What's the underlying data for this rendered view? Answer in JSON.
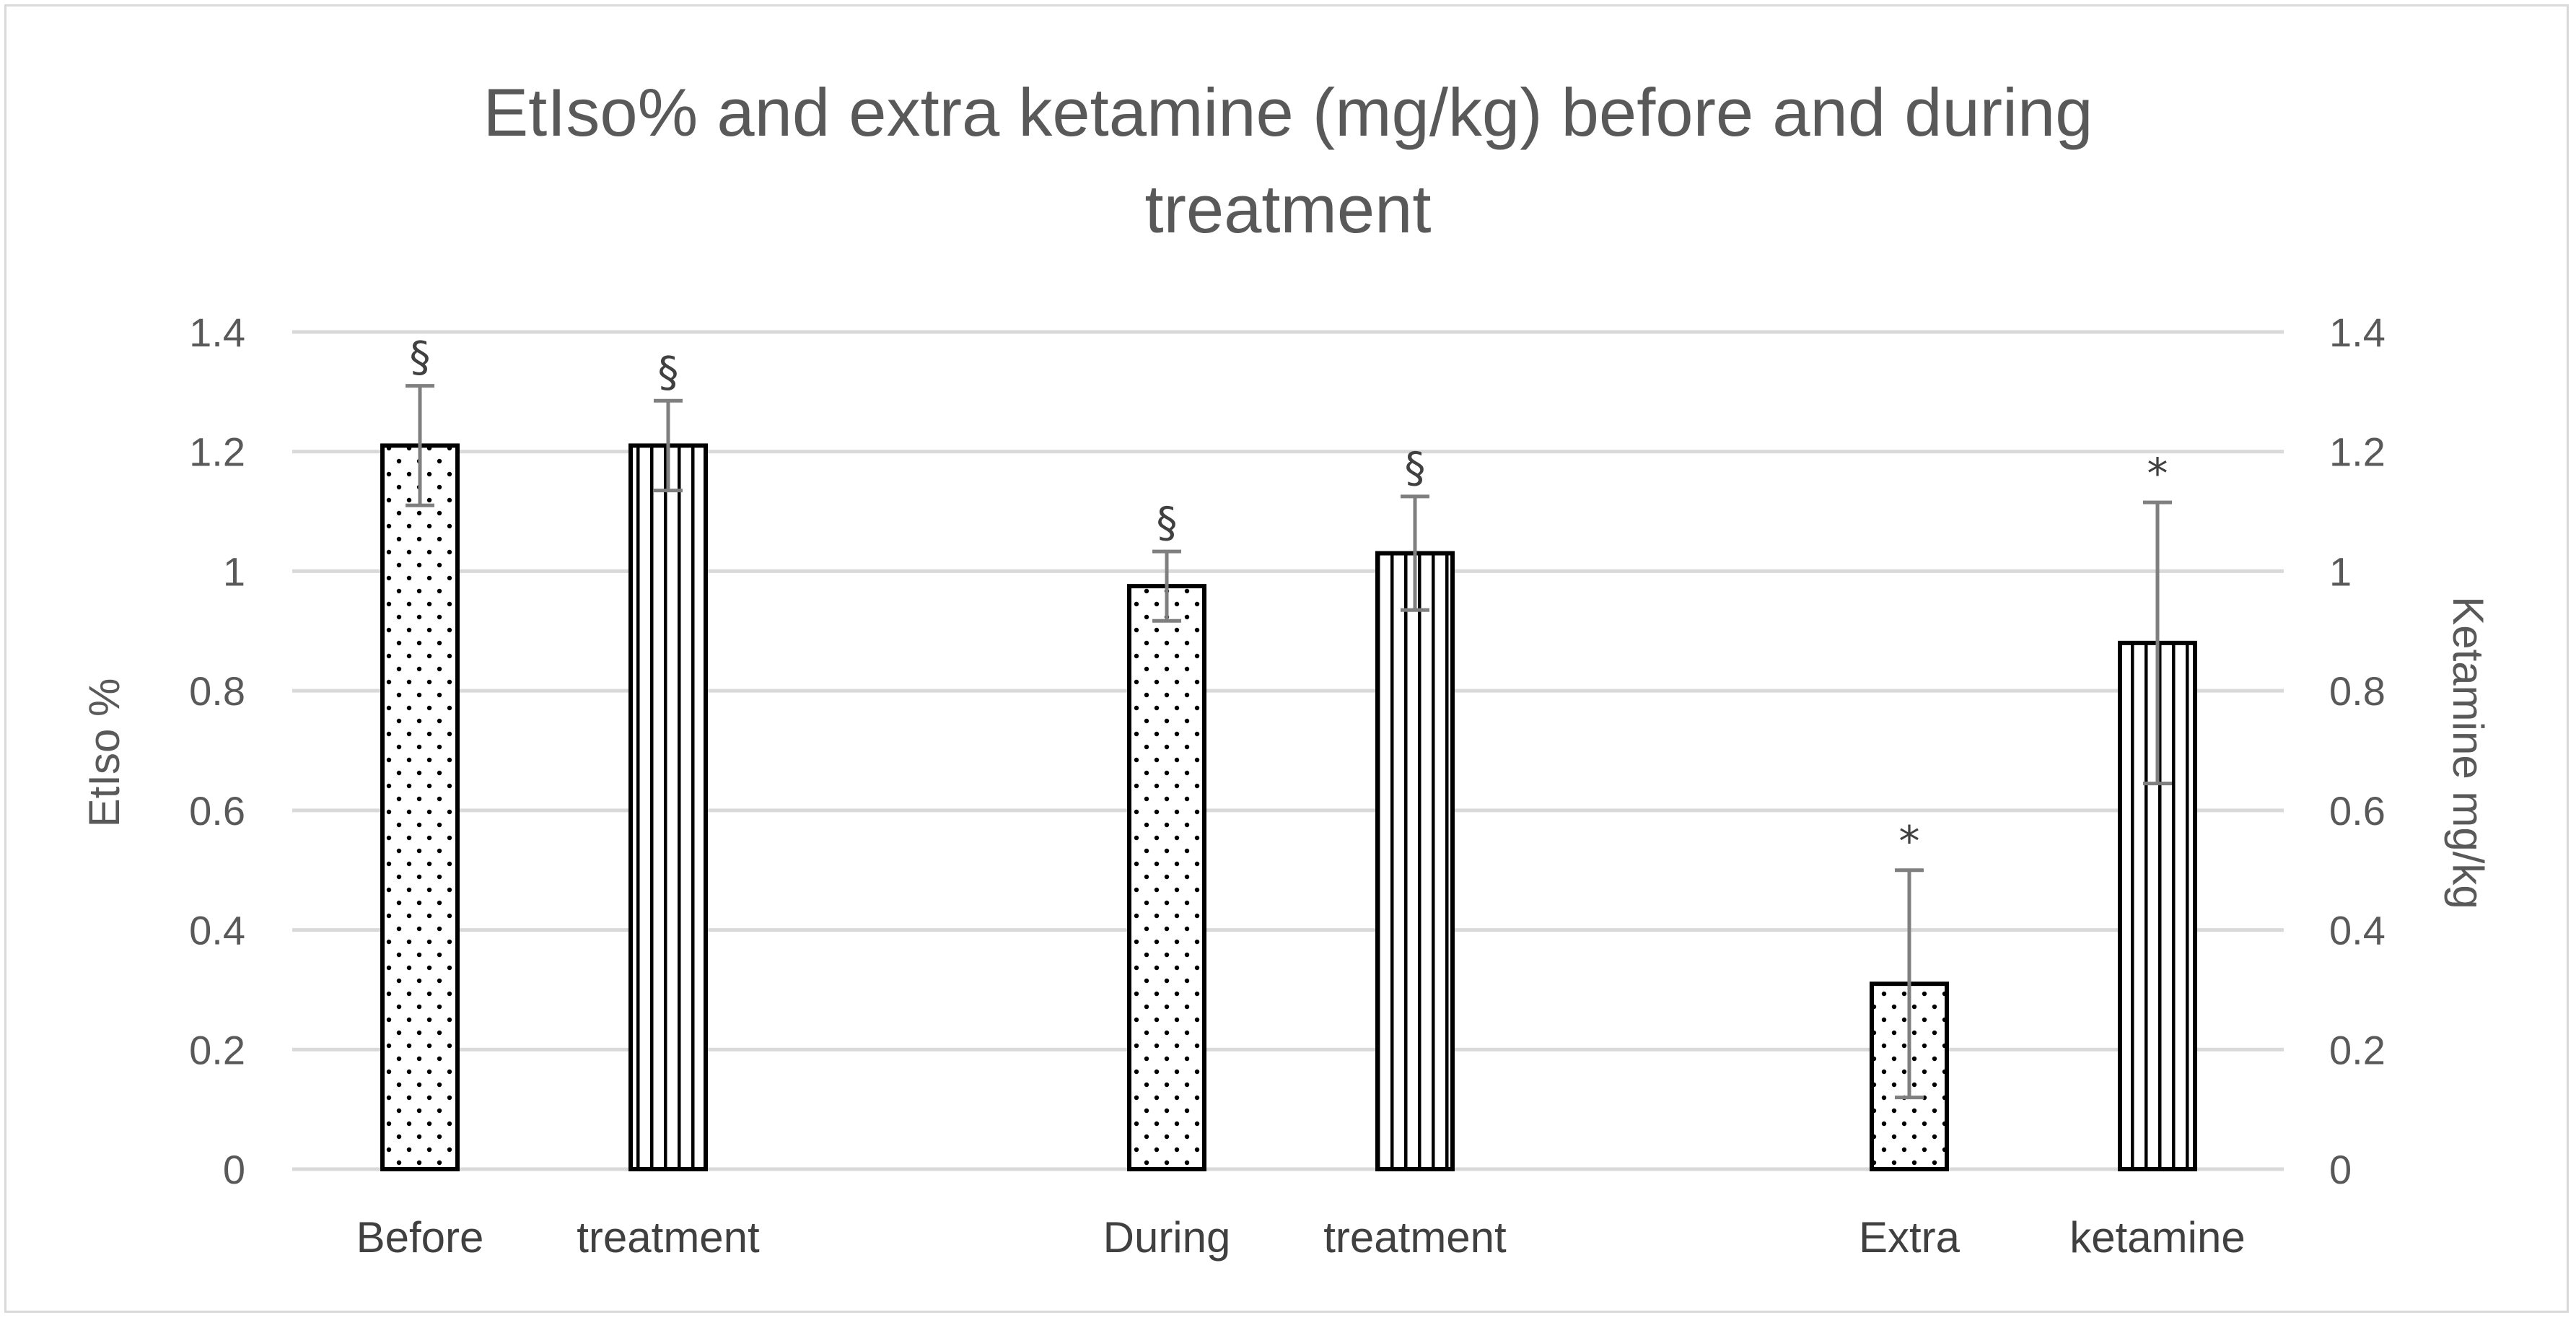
{
  "chart_data": {
    "type": "bar",
    "title_lines": [
      "EtIso% and extra ketamine (mg/kg) before and during",
      "treatment"
    ],
    "ylabel_left": "EtIso %",
    "ylabel_right": "Ketamine mg/kg",
    "ylim": [
      0,
      1.4
    ],
    "ylim_right": [
      0,
      1.4
    ],
    "yticks": [
      "0",
      "0.2",
      "0.4",
      "0.6",
      "0.8",
      "1",
      "1.2",
      "1.4"
    ],
    "yticks_right": [
      "0",
      "0.2",
      "0.4",
      "0.6",
      "0.8",
      "1",
      "1.2",
      "1.4"
    ],
    "ytick_values": [
      0,
      0.2,
      0.4,
      0.6,
      0.8,
      1.0,
      1.2,
      1.4
    ],
    "groups": [
      {
        "labels": [
          "Before",
          "treatment"
        ]
      },
      {
        "labels": [
          "During",
          "treatment"
        ]
      },
      {
        "labels": [
          "Extra",
          "ketamine"
        ]
      }
    ],
    "bars": [
      {
        "group": 0,
        "slot": 0,
        "pattern": "dots",
        "value": 1.21,
        "err": 0.1,
        "marker": "§"
      },
      {
        "group": 0,
        "slot": 1,
        "pattern": "lines",
        "value": 1.21,
        "err": 0.075,
        "marker": "§"
      },
      {
        "group": 1,
        "slot": 0,
        "pattern": "dots",
        "value": 0.975,
        "err": 0.058,
        "marker": "§"
      },
      {
        "group": 1,
        "slot": 1,
        "pattern": "lines",
        "value": 1.03,
        "err": 0.095,
        "marker": "§"
      },
      {
        "group": 2,
        "slot": 0,
        "pattern": "dots",
        "value": 0.31,
        "err": 0.19,
        "marker": "*"
      },
      {
        "group": 2,
        "slot": 1,
        "pattern": "lines",
        "value": 0.88,
        "err": 0.235,
        "marker": "*"
      }
    ],
    "grid": true,
    "legend": "none"
  }
}
